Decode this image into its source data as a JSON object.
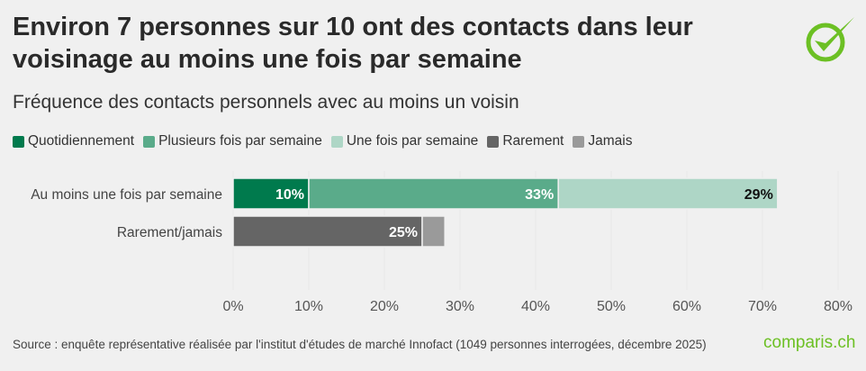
{
  "title": "Environ 7 personnes sur 10 ont des contacts dans leur voisinage au moins une fois par semaine",
  "subtitle": "Fréquence des contacts personnels avec au moins un voisin",
  "source": "Source : enquête représentative réalisée par l'institut d'études de marché Innofact (1049 personnes interrogées, décembre 2025)",
  "brand": "comparis.ch",
  "logo_icon": "green-checkmark-circle-icon",
  "chart_data": {
    "type": "bar",
    "orientation": "horizontal-stacked",
    "categories": [
      "Au moins une fois par semaine",
      "Rarement/jamais"
    ],
    "series": [
      {
        "name": "Quotidiennement",
        "color": "#007a4d",
        "values": [
          10,
          null
        ],
        "labels": [
          "10%",
          ""
        ]
      },
      {
        "name": "Plusieurs fois par semaine",
        "color": "#5aab8a",
        "values": [
          33,
          null
        ],
        "labels": [
          "33%",
          ""
        ]
      },
      {
        "name": "Une fois par semaine",
        "color": "#aed6c6",
        "values": [
          29,
          null
        ],
        "labels": [
          "29%",
          ""
        ]
      },
      {
        "name": "Rarement",
        "color": "#656565",
        "values": [
          null,
          25
        ],
        "labels": [
          "",
          "25%"
        ]
      },
      {
        "name": "Jamais",
        "color": "#9a9a9a",
        "values": [
          null,
          3
        ],
        "labels": [
          "",
          ""
        ]
      }
    ],
    "xlim": [
      0,
      80
    ],
    "xticks": [
      "0%",
      "10%",
      "20%",
      "30%",
      "40%",
      "50%",
      "60%",
      "70%",
      "80%"
    ],
    "legend_position": "top"
  }
}
